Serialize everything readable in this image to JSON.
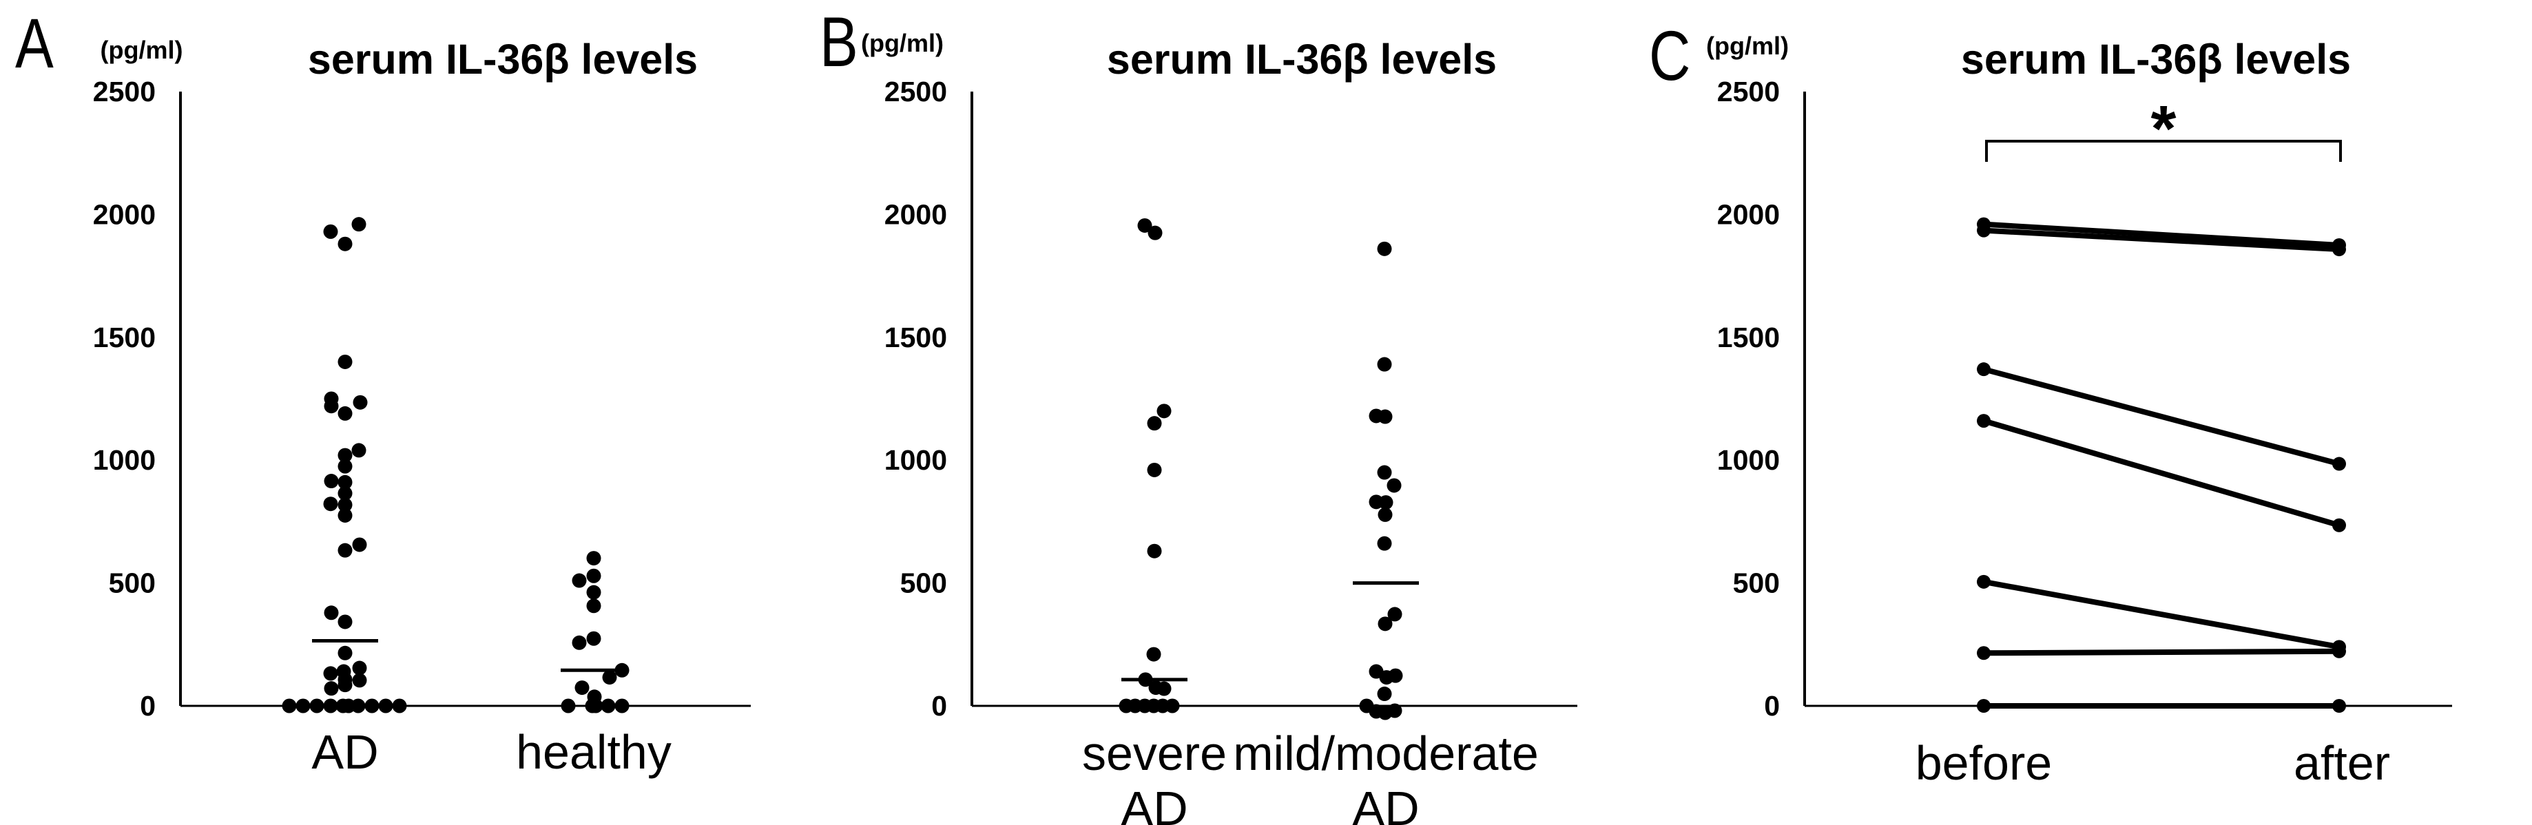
{
  "figure_title": "serum IL-36β levels comparison figure",
  "chart_data": [
    {
      "type": "scatter",
      "panel_label": "A",
      "title": "serum IL-36β levels",
      "y_axis": {
        "unit": "(pg/ml)",
        "ticks": [
          2500,
          2000,
          1500,
          1000,
          500,
          0
        ],
        "ylim": [
          0,
          2500
        ]
      },
      "layout": {
        "axis_x": 262,
        "baseline_y": 1025,
        "top_y": 133,
        "baseline_x2": 1090
      },
      "groups": [
        {
          "label_line1": "AD",
          "center_x": 501,
          "mean": 265,
          "mean_halfwidth": 48,
          "points": [
            [
              1960,
              20
            ],
            [
              1930,
              -21
            ],
            [
              1880,
              0
            ],
            [
              1400,
              0
            ],
            [
              1250,
              -20
            ],
            [
              1235,
              22
            ],
            [
              1220,
              -20
            ],
            [
              1190,
              0
            ],
            [
              1040,
              20
            ],
            [
              1020,
              0
            ],
            [
              975,
              0
            ],
            [
              915,
              -20
            ],
            [
              910,
              0
            ],
            [
              865,
              0
            ],
            [
              822,
              -21
            ],
            [
              818,
              0
            ],
            [
              775,
              0
            ],
            [
              656,
              21
            ],
            [
              633,
              0
            ],
            [
              379,
              -20
            ],
            [
              342,
              0
            ],
            [
              215,
              0
            ],
            [
              154,
              21
            ],
            [
              140,
              -2
            ],
            [
              132,
              -21
            ],
            [
              107,
              0
            ],
            [
              104,
              21
            ],
            [
              85,
              0
            ],
            [
              71,
              -20
            ],
            [
              0,
              -81
            ],
            [
              0,
              -61
            ],
            [
              0,
              -41
            ],
            [
              0,
              -21
            ],
            [
              0,
              -3
            ],
            [
              0,
              5
            ],
            [
              0,
              19
            ],
            [
              0,
              39
            ],
            [
              0,
              59
            ],
            [
              0,
              79
            ]
          ]
        },
        {
          "label_line1": "healthy",
          "center_x": 862,
          "mean": 145,
          "mean_halfwidth": 48,
          "points": [
            [
              601,
              0
            ],
            [
              529,
              0
            ],
            [
              510,
              -21
            ],
            [
              462,
              0
            ],
            [
              407,
              0
            ],
            [
              274,
              0
            ],
            [
              257,
              -21
            ],
            [
              145,
              41
            ],
            [
              116,
              23
            ],
            [
              74,
              -17
            ],
            [
              37,
              1
            ],
            [
              0,
              -37
            ],
            [
              0,
              -2
            ],
            [
              0,
              3
            ],
            [
              0,
              21
            ],
            [
              0,
              41
            ]
          ]
        }
      ]
    },
    {
      "type": "scatter",
      "panel_label": "B",
      "title": "serum IL-36β levels",
      "y_axis": {
        "unit": "(pg/ml)",
        "ticks": [
          2500,
          2000,
          1500,
          1000,
          500,
          0
        ],
        "ylim": [
          0,
          2500
        ]
      },
      "layout": {
        "axis_x": 1411,
        "baseline_y": 1025,
        "top_y": 133,
        "baseline_x2": 2290
      },
      "groups": [
        {
          "label_line1": "severe",
          "label_line2": "AD",
          "center_x": 1676,
          "mean": 107,
          "mean_halfwidth": 48,
          "points": [
            [
              1955,
              -14
            ],
            [
              1925,
              1
            ],
            [
              1200,
              14
            ],
            [
              1150,
              0
            ],
            [
              960,
              0
            ],
            [
              630,
              0
            ],
            [
              210,
              -1
            ],
            [
              107,
              -13
            ],
            [
              74,
              2
            ],
            [
              70,
              14
            ],
            [
              0,
              -41
            ],
            [
              0,
              -28
            ],
            [
              0,
              -14
            ],
            [
              0,
              -1
            ],
            [
              0,
              12
            ],
            [
              0,
              26
            ]
          ]
        },
        {
          "label_line1": "mild/moderate",
          "label_line2": "AD",
          "center_x": 2012,
          "mean": 500,
          "mean_halfwidth": 48,
          "points": [
            [
              1860,
              -2
            ],
            [
              1390,
              -2
            ],
            [
              1180,
              -14
            ],
            [
              1177,
              -1
            ],
            [
              950,
              -2
            ],
            [
              897,
              12
            ],
            [
              830,
              -14
            ],
            [
              828,
              0
            ],
            [
              778,
              -1
            ],
            [
              661,
              -2
            ],
            [
              373,
              13
            ],
            [
              334,
              -1
            ],
            [
              140,
              -14
            ],
            [
              123,
              14
            ],
            [
              116,
              1
            ],
            [
              49,
              -2
            ],
            [
              0,
              -28
            ],
            [
              0,
              -14,
              8
            ],
            [
              0,
              -1,
              10
            ],
            [
              0,
              13,
              7
            ]
          ]
        }
      ]
    },
    {
      "type": "paired_line",
      "panel_label": "C",
      "title": "serum IL-36β levels",
      "y_axis": {
        "unit": "(pg/ml)",
        "ticks": [
          2500,
          2000,
          1500,
          1000,
          500,
          0
        ],
        "ylim": [
          0,
          2500
        ]
      },
      "layout": {
        "axis_x": 2620,
        "baseline_y": 1025,
        "top_y": 133,
        "baseline_x2": 3560
      },
      "paired": {
        "col1": {
          "label": "before",
          "x": 2880
        },
        "col2": {
          "label": "after",
          "x": 3396
        },
        "pairs": [
          [
            1960,
            1875
          ],
          [
            1935,
            1858
          ],
          [
            1370,
            985
          ],
          [
            1160,
            735
          ],
          [
            505,
            240
          ],
          [
            215,
            222
          ],
          [
            0,
            0
          ]
        ],
        "significance": {
          "symbol": "*",
          "x1": 2884,
          "x2": 3398,
          "y": 205,
          "tick_down": 30,
          "star_y": 219
        }
      }
    }
  ]
}
